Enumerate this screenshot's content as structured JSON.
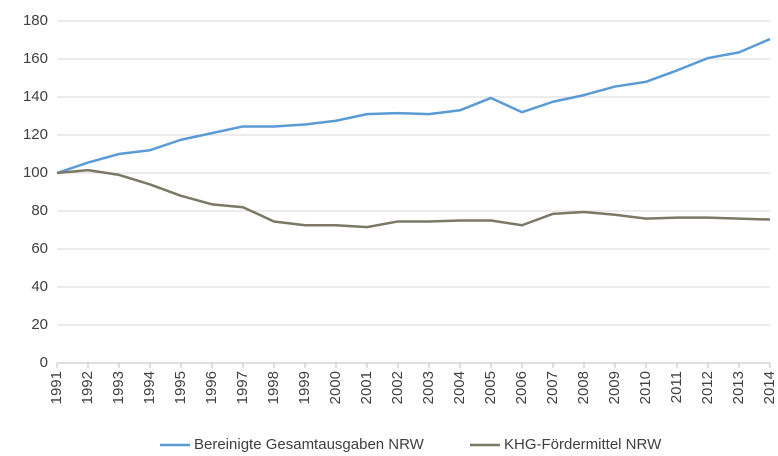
{
  "chart_data": {
    "type": "line",
    "categories": [
      "1991",
      "1992",
      "1993",
      "1994",
      "1995",
      "1996",
      "1997",
      "1998",
      "1999",
      "2000",
      "2001",
      "2002",
      "2003",
      "2004",
      "2005",
      "2006",
      "2007",
      "2008",
      "2009",
      "2010",
      "2011",
      "2012",
      "2013",
      "2014"
    ],
    "series": [
      {
        "name": "Bereinigte Gesamtausgaben NRW",
        "color": "#5b9bd5",
        "values": [
          100,
          105.5,
          110,
          112,
          117.5,
          121,
          124.5,
          124.5,
          125.5,
          127.5,
          131,
          131.5,
          131,
          133,
          139.5,
          132,
          137.5,
          141,
          145.5,
          148,
          154,
          160.5,
          163.5,
          170.5
        ]
      },
      {
        "name": "KHG-Fördermittel NRW",
        "color": "#7b7866",
        "values": [
          100,
          101.5,
          99,
          94,
          88,
          83.5,
          82,
          74.5,
          72.5,
          72.5,
          71.5,
          74.5,
          74.5,
          75,
          75,
          72.5,
          78.5,
          79.5,
          78,
          76,
          76.5,
          76.5,
          76,
          75.5
        ]
      }
    ],
    "ylim": [
      0,
      180
    ],
    "yticks": [
      0,
      20,
      40,
      60,
      80,
      100,
      120,
      140,
      160,
      180
    ],
    "grid": true,
    "legend": "bottom"
  }
}
